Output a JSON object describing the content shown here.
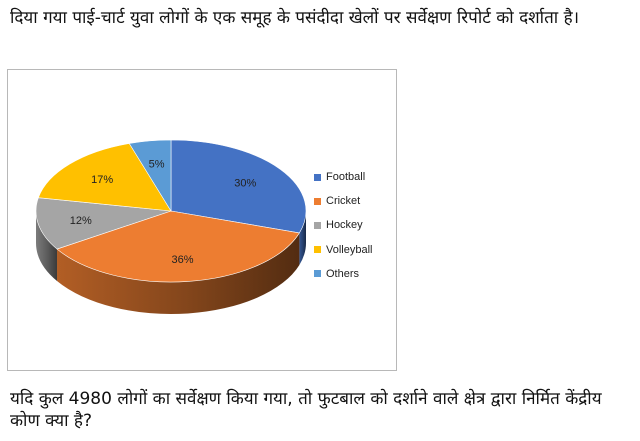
{
  "question": {
    "intro": "दिया गया पाई-चार्ट युवा लोगों के एक समूह के पसंदीदा खेलों पर सर्वेक्षण रिपोर्ट को दर्शाता है।",
    "prompt": "यदि कुल 4980 लोगों का सर्वेक्षण किया गया, तो फुटबाल को दर्शाने वाले क्षेत्र द्वारा निर्मित केंद्रीय कोण क्या है?"
  },
  "chart_data": {
    "type": "pie",
    "style": "3d",
    "title": "",
    "legend_position": "right",
    "categories": [
      "Football",
      "Cricket",
      "Hockey",
      "Volleyball",
      "Others"
    ],
    "values": [
      30,
      36,
      12,
      17,
      5
    ],
    "labels": [
      "30%",
      "36%",
      "12%",
      "17%",
      "5%"
    ],
    "colors": [
      "#4472C4",
      "#ED7D31",
      "#A5A5A5",
      "#FFC000",
      "#5B9BD5"
    ]
  }
}
